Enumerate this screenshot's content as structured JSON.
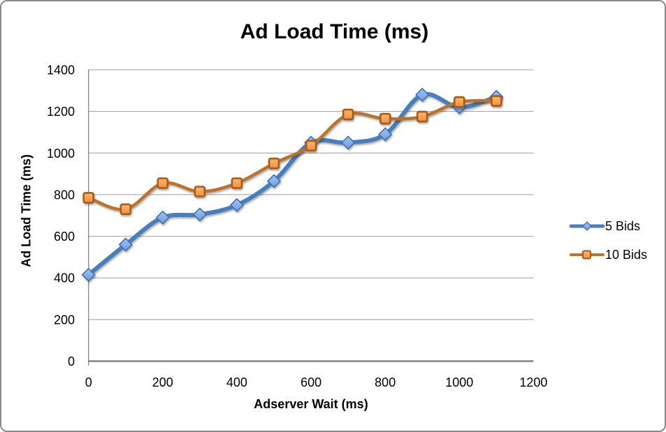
{
  "chart_data": {
    "type": "line",
    "title": "Ad Load Time (ms)",
    "xlabel": "Adserver Wait (ms)",
    "ylabel": "Ad Load Time (ms)",
    "x": [
      0,
      100,
      200,
      300,
      400,
      500,
      600,
      700,
      800,
      900,
      1000,
      1100
    ],
    "series": [
      {
        "name": "5 Bids",
        "marker": "diamond",
        "line_color": "#4a7ebc",
        "marker_fill": "#6d9be0",
        "marker_fill_light": "#a3c4f0",
        "marker_stroke": "#3f6fae",
        "line_width": 6,
        "values": [
          415,
          560,
          690,
          705,
          750,
          865,
          1050,
          1050,
          1090,
          1280,
          1220,
          1270
        ]
      },
      {
        "name": "10 Bids",
        "marker": "square",
        "line_color": "#b8732d",
        "marker_fill": "#f1903f",
        "marker_fill_light": "#f8b871",
        "marker_stroke": "#a85a17",
        "line_width": 4.5,
        "values": [
          785,
          730,
          855,
          815,
          855,
          950,
          1035,
          1185,
          1165,
          1175,
          1245,
          1250
        ]
      }
    ],
    "x_ticks": [
      0,
      200,
      400,
      600,
      800,
      1000,
      1200
    ],
    "y_ticks": [
      0,
      200,
      400,
      600,
      800,
      1000,
      1200,
      1400
    ],
    "xlim": [
      0,
      1200
    ],
    "ylim": [
      0,
      1400
    ],
    "grid": "horizontal",
    "legend_position": "right",
    "smoothed": true
  },
  "colors": {
    "gridline": "#9c9c9c",
    "axis": "#848484",
    "text": "#000000",
    "frame_border": "#8a8a8a",
    "background": "#ffffff"
  }
}
